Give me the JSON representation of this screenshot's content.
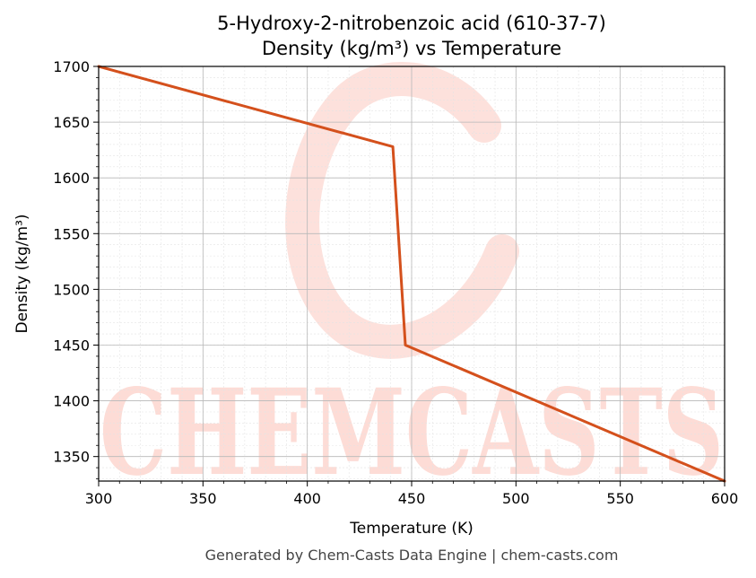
{
  "chart_data": {
    "type": "line",
    "title_line1": "5-Hydroxy-2-nitrobenzoic acid (610-37-7)",
    "title_line2": "Density (kg/m³) vs Temperature",
    "xlabel": "Temperature (K)",
    "ylabel": "Density (kg/m³)",
    "xlim": [
      300,
      600
    ],
    "ylim": [
      1328,
      1700
    ],
    "x_ticks": [
      300,
      350,
      400,
      450,
      500,
      550,
      600
    ],
    "y_ticks": [
      1350,
      1400,
      1450,
      1500,
      1550,
      1600,
      1650,
      1700
    ],
    "grid": true,
    "series": [
      {
        "color": "#d4501c",
        "x": [
          300,
          441,
          447,
          600
        ],
        "y": [
          1700,
          1628,
          1450,
          1328
        ]
      }
    ]
  },
  "watermark": {
    "text": "CHEMCASTS",
    "color": "#fddcd6"
  },
  "footer": "Generated by Chem-Casts Data Engine | chem-casts.com"
}
